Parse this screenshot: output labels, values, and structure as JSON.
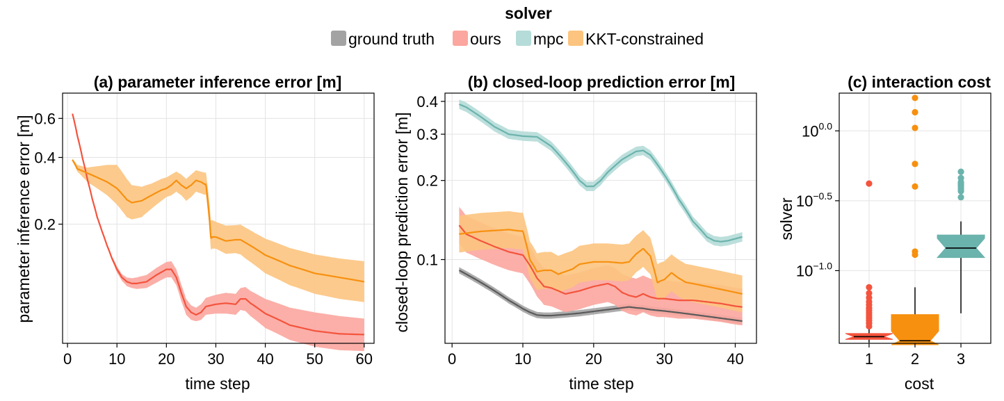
{
  "legend": {
    "title": "solver",
    "entries": [
      {
        "label": "ground truth",
        "color": "#a3a3a3"
      },
      {
        "label": "ours",
        "color": "#fba69e"
      },
      {
        "label": "mpc",
        "color": "#b5dcd8"
      },
      {
        "label": "KKT-constrained",
        "color": "#fcc47f"
      }
    ]
  },
  "colors": {
    "ground_truth": "#5a5a5a",
    "ground_truth_band": "#a3a3a3",
    "ours": "#f4533d",
    "ours_band": "#fba69e",
    "mpc": "#6bb3ad",
    "mpc_band": "#b5dcd8",
    "kkt": "#f7900f",
    "kkt_band": "#fcc47f"
  },
  "chart_data": [
    {
      "type": "line",
      "title": "(a) parameter inference error [m]",
      "xlabel": "time step",
      "ylabel": "parameter inference error [m]",
      "yscale": "log",
      "xlim": [
        -1,
        62
      ],
      "ylim": [
        0.058,
        0.78
      ],
      "xticks": [
        0,
        10,
        20,
        30,
        40,
        50,
        60
      ],
      "yticks": [
        {
          "v": 0.2,
          "label": "0.2"
        },
        {
          "v": 0.4,
          "label": "0.4"
        },
        {
          "v": 0.6,
          "label": "0.6"
        }
      ],
      "series": [
        {
          "name": "ours",
          "color_key": "ours",
          "x": [
            1,
            2,
            3,
            4,
            5,
            6,
            7,
            8,
            9,
            10,
            11,
            12,
            13,
            14,
            16,
            18,
            20,
            21,
            22,
            23,
            24,
            25,
            26,
            27,
            28,
            30,
            32,
            34,
            35,
            36,
            37,
            40,
            45,
            50,
            55,
            60
          ],
          "y": [
            0.63,
            0.5,
            0.4,
            0.32,
            0.26,
            0.215,
            0.185,
            0.16,
            0.14,
            0.125,
            0.115,
            0.11,
            0.108,
            0.108,
            0.11,
            0.118,
            0.125,
            0.125,
            0.115,
            0.098,
            0.085,
            0.08,
            0.078,
            0.08,
            0.085,
            0.087,
            0.088,
            0.087,
            0.092,
            0.092,
            0.088,
            0.079,
            0.07,
            0.066,
            0.064,
            0.0635
          ],
          "lo": [
            0.625,
            0.495,
            0.395,
            0.316,
            0.257,
            0.212,
            0.182,
            0.157,
            0.137,
            0.121,
            0.111,
            0.105,
            0.103,
            0.102,
            0.103,
            0.109,
            0.115,
            0.115,
            0.106,
            0.09,
            0.078,
            0.074,
            0.073,
            0.074,
            0.078,
            0.079,
            0.079,
            0.078,
            0.082,
            0.081,
            0.077,
            0.068,
            0.06,
            0.056,
            0.054,
            0.0535
          ],
          "hi": [
            0.635,
            0.505,
            0.405,
            0.324,
            0.263,
            0.218,
            0.188,
            0.163,
            0.143,
            0.129,
            0.119,
            0.115,
            0.114,
            0.115,
            0.118,
            0.127,
            0.135,
            0.136,
            0.125,
            0.107,
            0.092,
            0.086,
            0.084,
            0.087,
            0.093,
            0.096,
            0.098,
            0.097,
            0.103,
            0.104,
            0.1,
            0.092,
            0.084,
            0.08,
            0.077,
            0.075
          ]
        },
        {
          "name": "KKT-constrained",
          "color_key": "kkt",
          "x": [
            1,
            2,
            4,
            6,
            8,
            10,
            12,
            13,
            15,
            17,
            19,
            20,
            21,
            22,
            23,
            24,
            25,
            26,
            27,
            28,
            29,
            30,
            32,
            34,
            35,
            36,
            38,
            40,
            45,
            50,
            55,
            60
          ],
          "y": [
            0.39,
            0.355,
            0.34,
            0.325,
            0.31,
            0.29,
            0.258,
            0.25,
            0.255,
            0.27,
            0.285,
            0.29,
            0.3,
            0.315,
            0.3,
            0.29,
            0.3,
            0.315,
            0.31,
            0.3,
            0.175,
            0.175,
            0.168,
            0.17,
            0.17,
            0.165,
            0.155,
            0.145,
            0.13,
            0.12,
            0.115,
            0.11
          ],
          "lo": [
            0.385,
            0.345,
            0.31,
            0.29,
            0.27,
            0.245,
            0.215,
            0.21,
            0.215,
            0.235,
            0.255,
            0.265,
            0.27,
            0.28,
            0.27,
            0.255,
            0.265,
            0.28,
            0.275,
            0.27,
            0.155,
            0.155,
            0.147,
            0.148,
            0.146,
            0.14,
            0.13,
            0.12,
            0.106,
            0.097,
            0.092,
            0.089
          ],
          "hi": [
            0.395,
            0.37,
            0.36,
            0.365,
            0.37,
            0.37,
            0.32,
            0.3,
            0.295,
            0.305,
            0.32,
            0.325,
            0.335,
            0.345,
            0.335,
            0.32,
            0.335,
            0.35,
            0.345,
            0.34,
            0.21,
            0.205,
            0.197,
            0.198,
            0.199,
            0.193,
            0.182,
            0.172,
            0.156,
            0.146,
            0.14,
            0.136
          ]
        }
      ]
    },
    {
      "type": "line",
      "title": "(b) closed-loop prediction error [m]",
      "xlabel": "time step",
      "ylabel": "closed-loop prediction error [m]",
      "yscale": "log",
      "xlim": [
        -1,
        43
      ],
      "ylim": [
        0.048,
        0.43
      ],
      "xticks": [
        0,
        10,
        20,
        30,
        40
      ],
      "yticks": [
        {
          "v": 0.1,
          "label": "0.1"
        },
        {
          "v": 0.2,
          "label": "0.2"
        },
        {
          "v": 0.3,
          "label": "0.3"
        },
        {
          "v": 0.4,
          "label": "0.4"
        }
      ],
      "series": [
        {
          "name": "ground truth",
          "color_key": "ground_truth",
          "bandw": 0.012,
          "x": [
            1,
            2,
            4,
            6,
            8,
            10,
            11,
            12,
            13,
            14,
            16,
            18,
            20,
            22,
            24,
            25,
            26,
            27,
            28,
            30,
            32,
            34,
            36,
            38,
            40,
            41
          ],
          "y": [
            0.091,
            0.088,
            0.082,
            0.076,
            0.07,
            0.065,
            0.063,
            0.0615,
            0.0612,
            0.0612,
            0.0618,
            0.0625,
            0.0635,
            0.0645,
            0.0655,
            0.066,
            0.0655,
            0.0652,
            0.0645,
            0.0637,
            0.0628,
            0.0618,
            0.0608,
            0.0598,
            0.0588,
            0.0583
          ]
        },
        {
          "name": "mpc",
          "color_key": "mpc",
          "bandw": 0.018,
          "x": [
            1,
            2,
            4,
            6,
            8,
            10,
            12,
            14,
            16,
            18,
            19,
            20,
            21,
            22,
            24,
            26,
            27,
            28,
            30,
            32,
            34,
            36,
            37,
            38,
            39,
            40,
            41
          ],
          "y": [
            0.39,
            0.38,
            0.35,
            0.32,
            0.3,
            0.295,
            0.293,
            0.27,
            0.235,
            0.2,
            0.19,
            0.19,
            0.2,
            0.215,
            0.24,
            0.258,
            0.26,
            0.25,
            0.21,
            0.17,
            0.14,
            0.122,
            0.118,
            0.117,
            0.118,
            0.12,
            0.122
          ]
        },
        {
          "name": "ours",
          "color_key": "ours",
          "bandw": 0.07,
          "x": [
            1,
            2,
            4,
            6,
            8,
            10,
            11,
            12,
            13,
            14,
            16,
            18,
            20,
            22,
            23,
            24,
            25,
            26,
            27,
            28,
            29,
            30,
            32,
            34,
            36,
            38,
            40,
            41
          ],
          "y": [
            0.135,
            0.125,
            0.118,
            0.112,
            0.107,
            0.104,
            0.095,
            0.085,
            0.079,
            0.078,
            0.074,
            0.076,
            0.079,
            0.081,
            0.079,
            0.075,
            0.073,
            0.072,
            0.074,
            0.072,
            0.071,
            0.071,
            0.07,
            0.07,
            0.069,
            0.068,
            0.0665,
            0.066
          ]
        },
        {
          "name": "KKT-constrained",
          "color_key": "kkt",
          "bandw": 0.07,
          "x": [
            1,
            2,
            4,
            6,
            8,
            10,
            11,
            12,
            13,
            14,
            15,
            16,
            17,
            18,
            20,
            22,
            24,
            25,
            26,
            27,
            28,
            29,
            30,
            31,
            32,
            33,
            34,
            36,
            38,
            40,
            41
          ],
          "y": [
            0.125,
            0.126,
            0.128,
            0.129,
            0.13,
            0.128,
            0.1,
            0.09,
            0.091,
            0.091,
            0.088,
            0.09,
            0.092,
            0.096,
            0.098,
            0.098,
            0.097,
            0.098,
            0.105,
            0.11,
            0.103,
            0.082,
            0.084,
            0.089,
            0.085,
            0.082,
            0.081,
            0.079,
            0.077,
            0.075,
            0.074
          ]
        }
      ]
    },
    {
      "type": "box",
      "title": "(c) interaction cost",
      "xlabel": "cost",
      "ylabel": "solver",
      "yscale": "log",
      "ylim_exp": [
        -1.52,
        0.27
      ],
      "categories": [
        "1",
        "2",
        "3"
      ],
      "xlim": [
        0.35,
        3.65
      ],
      "yticks": [
        {
          "exp": -1.0,
          "base": "10",
          "sup": "−1.0"
        },
        {
          "exp": -0.5,
          "base": "10",
          "sup": "−0.5"
        },
        {
          "exp": 0.0,
          "base": "10",
          "sup": "0.0"
        }
      ],
      "boxes": [
        {
          "cat": 1,
          "color_key": "ours",
          "min": 0.0305,
          "q1": 0.0322,
          "median": 0.0337,
          "q3": 0.0355,
          "max": 0.0385,
          "outliers": [
            0.04,
            0.042,
            0.044,
            0.046,
            0.048,
            0.05,
            0.052,
            0.054,
            0.057,
            0.06,
            0.064,
            0.069,
            0.076,
            0.42
          ]
        },
        {
          "cat": 2,
          "color_key": "kkt",
          "min": 0.0295,
          "q1": 0.0295,
          "median": 0.0315,
          "q3": 0.0485,
          "max": 0.076,
          "outliers": [
            0.13,
            0.137,
            0.4,
            0.58,
            1.05,
            1.36,
            1.72
          ]
        },
        {
          "cat": 3,
          "color_key": "mpc",
          "min": 0.0495,
          "q1": 0.124,
          "median": 0.145,
          "q3": 0.18,
          "max": 0.225,
          "outliers": [
            0.335,
            0.37,
            0.385,
            0.4,
            0.41,
            0.42,
            0.43,
            0.46,
            0.51
          ]
        }
      ]
    }
  ]
}
